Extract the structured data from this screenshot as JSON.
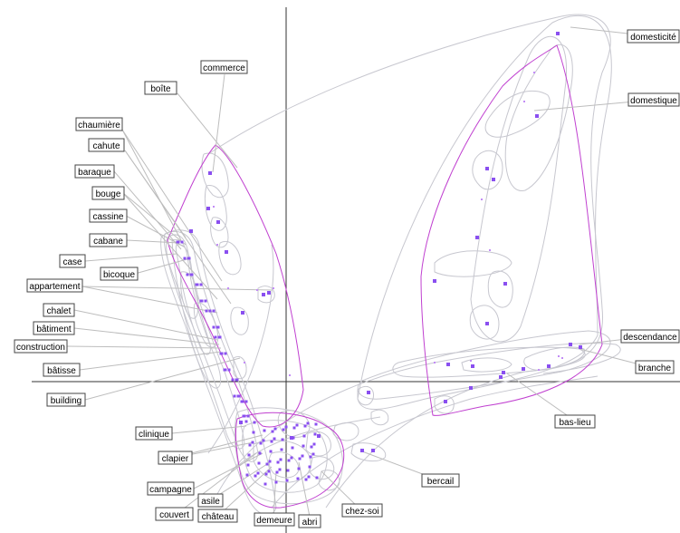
{
  "colors": {
    "point": "#8a4ff0",
    "point_small": "#c28cf6",
    "hull": "#c040d0",
    "cloud": "#c7c7cf",
    "leader": "#bdbdbd",
    "axis": "#333333"
  },
  "labels": {
    "commerce": "commerce",
    "boite": "boîte",
    "chaumiere": "chaumière",
    "cahute": "cahute",
    "baraque": "baraque",
    "bouge": "bouge",
    "cassine": "cassine",
    "cabane": "cabane",
    "case": "case",
    "bicoque": "bicoque",
    "appartement": "appartement",
    "chalet": "chalet",
    "batiment": "bâtiment",
    "construction": "construction",
    "batisse": "bâtisse",
    "building": "building",
    "clinique": "clinique",
    "clapier": "clapier",
    "campagne": "campagne",
    "asile": "asile",
    "couvert": "couvert",
    "chateau": "château",
    "demeure": "demeure",
    "abri": "abri",
    "chez_soi": "chez-soi",
    "bercail": "bercail",
    "bas_lieu": "bas-lieu",
    "branche": "branche",
    "descendance": "descendance",
    "domestique": "domestique",
    "domesticite": "domesticité"
  }
}
